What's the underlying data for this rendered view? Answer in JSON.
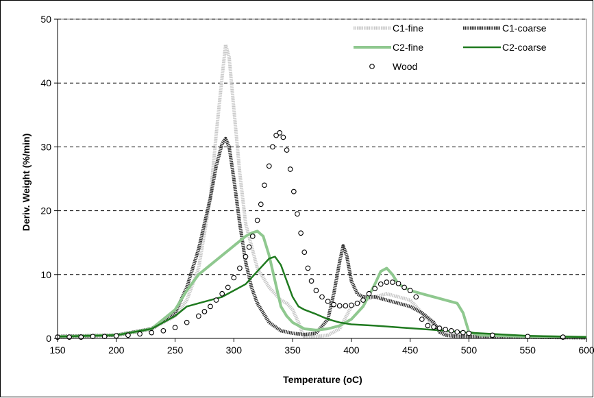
{
  "chart_data": {
    "type": "line",
    "title": "",
    "xlabel": "Temperature (oC)",
    "ylabel": "Deriv. Weight (%/min)",
    "xlim": [
      150,
      600
    ],
    "ylim": [
      0,
      50
    ],
    "xticks": [
      150,
      200,
      250,
      300,
      350,
      400,
      450,
      500,
      550,
      600
    ],
    "yticks": [
      0,
      10,
      20,
      30,
      40,
      50
    ],
    "grid": "horizontal dashed",
    "legend_placement": "top-right",
    "series": [
      {
        "name": "C1-fine",
        "color": "#c8c8c8",
        "style": "thick-dotted",
        "x": [
          150,
          200,
          230,
          250,
          260,
          270,
          280,
          285,
          290,
          293,
          296,
          300,
          305,
          310,
          320,
          330,
          335,
          340,
          345,
          350,
          355,
          358,
          360,
          370,
          380,
          390,
          400,
          410,
          420,
          430,
          440,
          450,
          460,
          470,
          480,
          490,
          500,
          520,
          550,
          600
        ],
        "y": [
          0.3,
          0.5,
          1.5,
          3.5,
          6,
          11,
          22,
          32,
          41,
          46,
          44,
          36,
          26,
          18,
          11,
          8,
          7,
          6,
          5.5,
          4.5,
          2.5,
          1,
          0.3,
          0.3,
          0.5,
          1.5,
          5,
          6,
          6.5,
          7,
          6.5,
          6,
          4,
          2,
          1,
          0.6,
          0.4,
          0.3,
          0.2,
          0.1
        ]
      },
      {
        "name": "C1-coarse",
        "color": "#333333",
        "style": "thick-dotted",
        "x": [
          150,
          200,
          230,
          250,
          260,
          270,
          280,
          285,
          290,
          293,
          296,
          300,
          305,
          310,
          315,
          320,
          325,
          330,
          340,
          350,
          360,
          370,
          380,
          385,
          390,
          393,
          396,
          400,
          405,
          410,
          420,
          430,
          440,
          450,
          460,
          470,
          475,
          480,
          490,
          500,
          520,
          550,
          600
        ],
        "y": [
          0.3,
          0.5,
          1.5,
          4,
          8,
          14,
          22,
          27,
          30.5,
          31.3,
          30,
          25,
          18,
          12,
          8,
          5.5,
          4,
          2.5,
          1.2,
          0.8,
          0.6,
          0.8,
          3,
          7,
          12,
          14.5,
          13,
          9,
          7,
          6.5,
          6.5,
          6,
          5.5,
          5,
          4,
          2.5,
          1,
          0.5,
          0.3,
          0.3,
          0.2,
          0.2,
          0.1
        ]
      },
      {
        "name": "C2-fine",
        "color": "#8fc88f",
        "style": "thick",
        "x": [
          150,
          200,
          230,
          250,
          260,
          270,
          280,
          290,
          300,
          310,
          315,
          320,
          325,
          330,
          335,
          340,
          345,
          350,
          360,
          370,
          380,
          390,
          400,
          410,
          420,
          425,
          430,
          435,
          440,
          450,
          460,
          470,
          480,
          490,
          495,
          500,
          510,
          550,
          600
        ],
        "y": [
          0.3,
          0.5,
          1.5,
          4.5,
          7.5,
          10,
          11.5,
          13,
          14.5,
          16,
          16.5,
          16.8,
          16,
          13,
          9,
          5,
          3.5,
          2.5,
          1.5,
          1.3,
          1.5,
          2,
          3,
          5,
          8.5,
          10.5,
          11,
          10,
          8.5,
          7.5,
          7,
          6.5,
          6,
          5.5,
          4,
          1,
          0.5,
          0.3,
          0.2
        ]
      },
      {
        "name": "C2-coarse",
        "color": "#1f7a1f",
        "style": "solid",
        "x": [
          150,
          200,
          230,
          250,
          260,
          270,
          280,
          290,
          300,
          310,
          320,
          330,
          335,
          340,
          345,
          350,
          355,
          360,
          370,
          380,
          390,
          400,
          420,
          450,
          480,
          500,
          520,
          550,
          600
        ],
        "y": [
          0.3,
          0.5,
          1.5,
          3.5,
          5,
          5.5,
          6,
          6.5,
          7.5,
          8.5,
          10.5,
          12.5,
          12.8,
          11.5,
          9,
          6.5,
          5,
          4.5,
          3.8,
          3,
          2.5,
          2.2,
          2,
          1.6,
          1.2,
          0.9,
          0.7,
          0.4,
          0.2
        ]
      },
      {
        "name": "Wood",
        "color": "#000000",
        "style": "open-circle",
        "x": [
          150,
          160,
          170,
          180,
          190,
          200,
          210,
          220,
          230,
          240,
          250,
          260,
          270,
          275,
          280,
          285,
          290,
          295,
          300,
          305,
          310,
          313,
          316,
          320,
          323,
          326,
          330,
          333,
          336,
          339,
          342,
          345,
          348,
          351,
          354,
          357,
          360,
          363,
          366,
          370,
          375,
          380,
          385,
          390,
          395,
          400,
          405,
          410,
          415,
          420,
          425,
          430,
          435,
          440,
          445,
          450,
          455,
          460,
          465,
          470,
          475,
          480,
          485,
          490,
          495,
          500,
          520,
          550,
          580
        ],
        "y": [
          0.2,
          0.2,
          0.2,
          0.3,
          0.3,
          0.4,
          0.5,
          0.7,
          0.9,
          1.2,
          1.7,
          2.5,
          3.5,
          4.2,
          5,
          6,
          7,
          8,
          9.5,
          11,
          12.8,
          14.3,
          16,
          18.5,
          21,
          24,
          27,
          30,
          31.8,
          32.2,
          31.5,
          29.5,
          26.5,
          23,
          19.5,
          16.5,
          13.5,
          11,
          9,
          7.5,
          6.5,
          5.8,
          5.3,
          5.1,
          5.1,
          5.2,
          5.5,
          6,
          7,
          7.8,
          8.5,
          8.8,
          8.8,
          8.6,
          8,
          7.5,
          6.5,
          3,
          2,
          1.8,
          1.6,
          1.4,
          1.2,
          1,
          0.9,
          0.8,
          0.5,
          0.3,
          0.2
        ]
      }
    ]
  }
}
